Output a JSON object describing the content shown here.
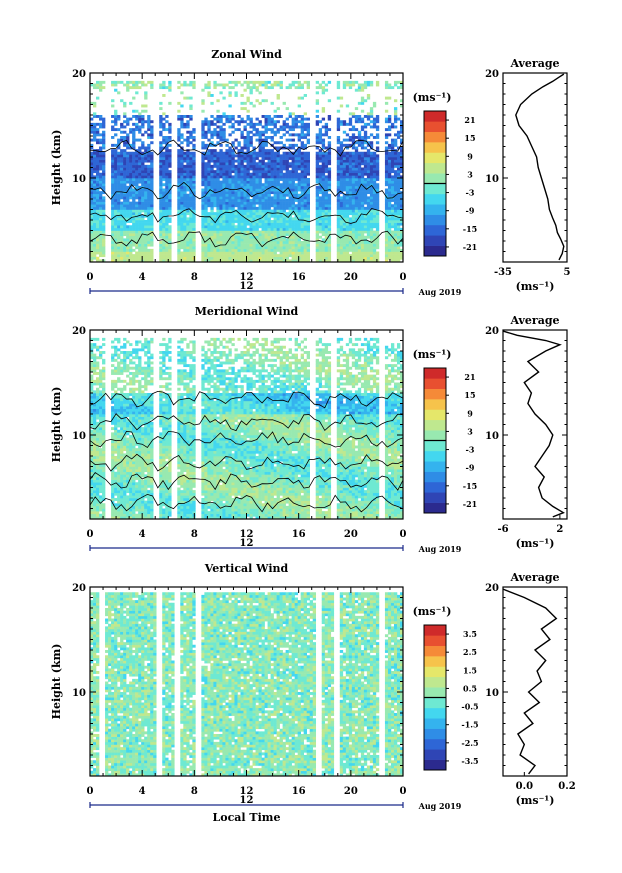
{
  "chart_data": [
    {
      "type": "heatmap",
      "title": "Zonal Wind",
      "ylabel": "Height (km)",
      "ylim": [
        2,
        20
      ],
      "y_ticks": [
        "20",
        "10"
      ],
      "x_ticks": [
        "0",
        "4",
        "8",
        "12",
        "16",
        "20",
        "0"
      ],
      "date_mark": "12",
      "date_label": "Aug 2019",
      "colorbar": {
        "unit": "(ms⁻¹)",
        "ticks": [
          "21",
          "15",
          "9",
          "3",
          "-3",
          "-9",
          "-15",
          "-21"
        ],
        "range": [
          -24,
          24
        ]
      },
      "profile": {
        "title": "Average",
        "xlabel": "(ms⁻¹)",
        "x_ticks": [
          "-35",
          "5"
        ],
        "xlim": [
          -35,
          5
        ],
        "y_ticks": [
          "20",
          "10"
        ],
        "points": [
          [
            0,
            2.2
          ],
          [
            2,
            2.8
          ],
          [
            3,
            3.5
          ],
          [
            1,
            4.2
          ],
          [
            -1,
            4.8
          ],
          [
            -2,
            5.5
          ],
          [
            -4,
            6.2
          ],
          [
            -6,
            7
          ],
          [
            -7,
            8
          ],
          [
            -9,
            9
          ],
          [
            -11,
            10
          ],
          [
            -13,
            11
          ],
          [
            -14,
            12
          ],
          [
            -17,
            13
          ],
          [
            -20,
            14
          ],
          [
            -25,
            15
          ],
          [
            -27,
            16
          ],
          [
            -24,
            17
          ],
          [
            -17,
            18
          ],
          [
            -10,
            18.7
          ],
          [
            -4,
            19.2
          ],
          [
            0,
            19.6
          ],
          [
            3,
            19.9
          ]
        ]
      }
    },
    {
      "type": "heatmap",
      "title": "Meridional Wind",
      "ylabel": "Height (km)",
      "ylim": [
        2,
        20
      ],
      "y_ticks": [
        "20",
        "10"
      ],
      "x_ticks": [
        "0",
        "4",
        "8",
        "12",
        "16",
        "20",
        "0"
      ],
      "date_mark": "12",
      "date_label": "Aug 2019",
      "colorbar": {
        "unit": "(ms⁻¹)",
        "ticks": [
          "21",
          "15",
          "9",
          "3",
          "-3",
          "-9",
          "-15",
          "-21"
        ],
        "range": [
          -24,
          24
        ]
      },
      "profile": {
        "title": "Average",
        "xlabel": "(ms⁻¹)",
        "x_ticks": [
          "-6",
          "2"
        ],
        "xlim": [
          -6,
          3
        ],
        "y_ticks": [
          "20",
          "10"
        ],
        "points": [
          [
            1,
            2.2
          ],
          [
            2.5,
            2.6
          ],
          [
            1,
            3.2
          ],
          [
            -0.5,
            4
          ],
          [
            -1,
            5
          ],
          [
            -0.2,
            6
          ],
          [
            -1.5,
            7
          ],
          [
            -0.5,
            8
          ],
          [
            0.5,
            9
          ],
          [
            1,
            10
          ],
          [
            0,
            11
          ],
          [
            -1.5,
            12
          ],
          [
            -2.5,
            13
          ],
          [
            -2,
            14
          ],
          [
            -3,
            15
          ],
          [
            -1,
            16
          ],
          [
            -2.5,
            17
          ],
          [
            0,
            18
          ],
          [
            2,
            18.6
          ],
          [
            0,
            19
          ],
          [
            -4,
            19.5
          ],
          [
            -6,
            19.9
          ]
        ]
      }
    },
    {
      "type": "heatmap",
      "title": "Vertical Wind",
      "ylabel": "Height (km)",
      "xlabel": "Local Time",
      "ylim": [
        2,
        20
      ],
      "y_ticks": [
        "20",
        "10"
      ],
      "x_ticks": [
        "0",
        "4",
        "8",
        "12",
        "16",
        "20",
        "0"
      ],
      "date_mark": "12",
      "date_label": "Aug 2019",
      "colorbar": {
        "unit": "(ms⁻¹)",
        "ticks": [
          "3.5",
          "2.5",
          "1.5",
          "0.5",
          "-0.5",
          "-1.5",
          "-2.5",
          "-3.5"
        ],
        "range": [
          -4,
          4
        ]
      },
      "profile": {
        "title": "Average",
        "xlabel": "(ms⁻¹)",
        "x_ticks": [
          "0.0",
          "0.2"
        ],
        "xlim": [
          -0.1,
          0.2
        ],
        "y_ticks": [
          "20",
          "10"
        ],
        "points": [
          [
            0.02,
            2.2
          ],
          [
            0.05,
            3
          ],
          [
            -0.02,
            4
          ],
          [
            0.0,
            5
          ],
          [
            -0.03,
            6
          ],
          [
            0.04,
            7
          ],
          [
            0.0,
            8
          ],
          [
            0.07,
            9
          ],
          [
            0.02,
            10
          ],
          [
            0.08,
            11
          ],
          [
            0.06,
            12
          ],
          [
            0.1,
            13
          ],
          [
            0.05,
            14
          ],
          [
            0.12,
            15
          ],
          [
            0.08,
            16
          ],
          [
            0.15,
            17
          ],
          [
            0.1,
            18
          ],
          [
            0.0,
            19
          ],
          [
            -0.1,
            19.8
          ]
        ]
      }
    }
  ]
}
